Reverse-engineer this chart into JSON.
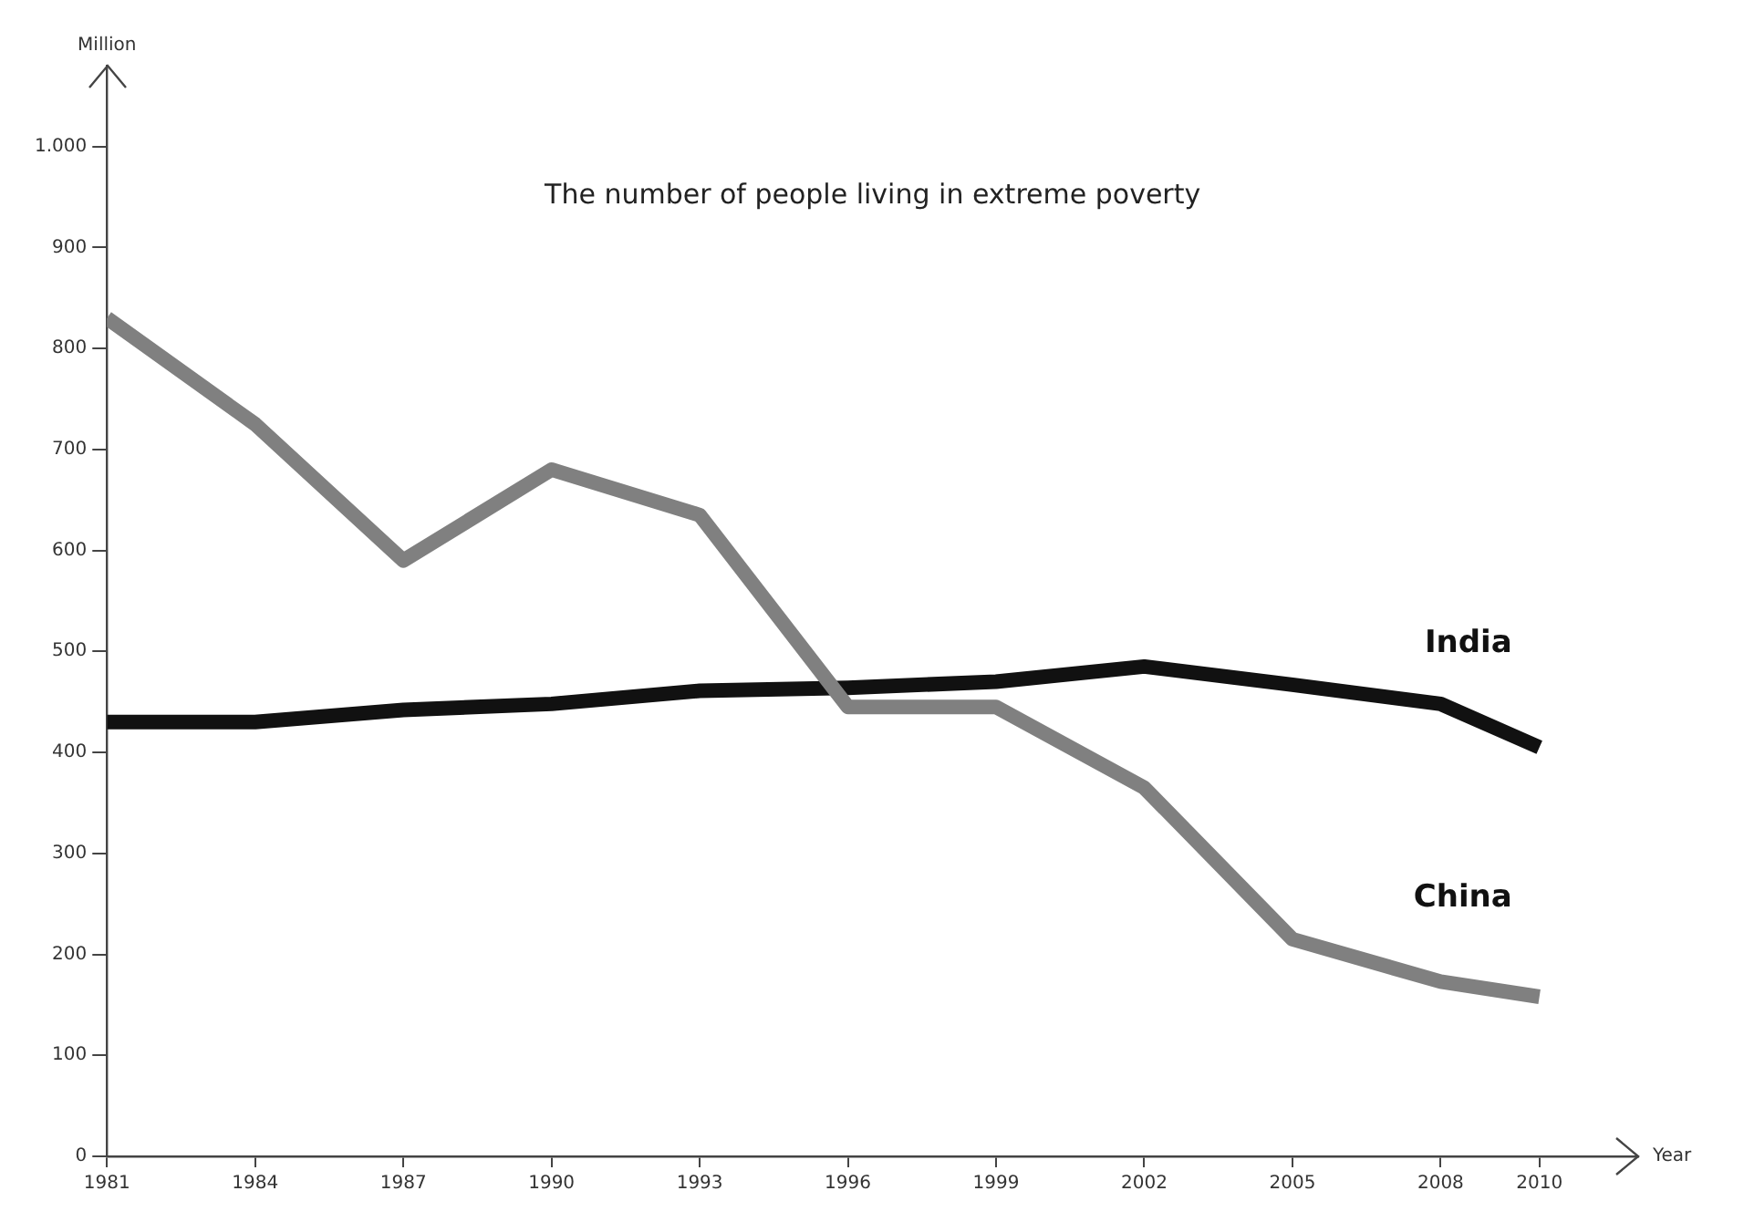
{
  "chart_data": {
    "type": "line",
    "title": "The number of people living in extreme poverty",
    "xlabel": "Year",
    "ylabel": "Million",
    "x": [
      1981,
      1984,
      1987,
      1990,
      1993,
      1996,
      1999,
      2002,
      2005,
      2008,
      2010
    ],
    "series": [
      {
        "name": "China",
        "color": "#808080",
        "values": [
          830,
          725,
          590,
          680,
          635,
          445,
          445,
          365,
          215,
          173,
          158
        ]
      },
      {
        "name": "India",
        "color": "#111111",
        "values": [
          430,
          430,
          442,
          448,
          461,
          464,
          470,
          485,
          467,
          448,
          405
        ]
      }
    ],
    "xlim": [
      1981,
      2012
    ],
    "xticks": [
      1981,
      1984,
      1987,
      1990,
      1993,
      1996,
      1999,
      2002,
      2005,
      2008,
      2010
    ],
    "ylim": [
      0,
      1080
    ],
    "yticks": [
      0,
      100,
      200,
      300,
      400,
      500,
      600,
      700,
      800,
      900,
      {
        "value": 1000,
        "label": "1.000"
      }
    ],
    "grid": false,
    "legend": false,
    "marker": "none",
    "line_style": "solid"
  }
}
